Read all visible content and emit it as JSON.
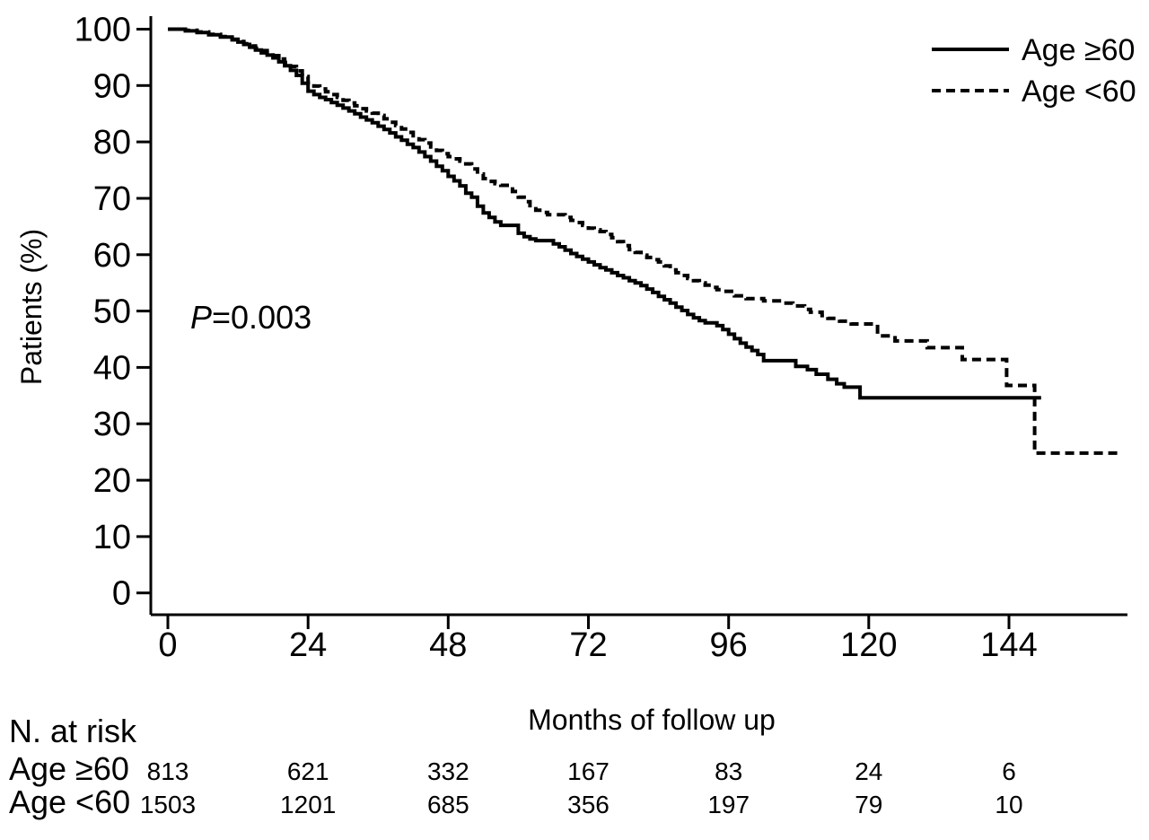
{
  "figure": {
    "background": "#ffffff",
    "ink_color": "#000000"
  },
  "chart_data": {
    "type": "line",
    "subtype": "kaplan-meier-step",
    "title": "",
    "xlabel": "Months of follow up",
    "ylabel": "Patients (%)",
    "xlim": [
      0,
      164
    ],
    "ylim": [
      0,
      100
    ],
    "grid": false,
    "legend_position": "top-right",
    "x_ticks": [
      0,
      24,
      48,
      72,
      96,
      120,
      144
    ],
    "y_ticks": [
      0,
      10,
      20,
      30,
      40,
      50,
      60,
      70,
      80,
      90,
      100
    ],
    "annotation": {
      "italic": "P",
      "text": "=0.003"
    },
    "series": [
      {
        "name": "Age ≥60",
        "line_style": "solid",
        "points": [
          [
            0,
            100
          ],
          [
            3,
            99.7
          ],
          [
            5,
            99.4
          ],
          [
            7,
            99.0
          ],
          [
            9,
            98.6
          ],
          [
            11,
            98.1
          ],
          [
            12,
            97.7
          ],
          [
            13,
            97.3
          ],
          [
            14,
            96.8
          ],
          [
            15,
            96.3
          ],
          [
            16,
            95.8
          ],
          [
            17,
            95.4
          ],
          [
            18,
            94.9
          ],
          [
            19,
            94.2
          ],
          [
            20,
            93.5
          ],
          [
            21,
            92.7
          ],
          [
            22,
            91.8
          ],
          [
            23,
            90.4
          ],
          [
            24,
            89.0
          ],
          [
            25,
            88.4
          ],
          [
            26,
            87.9
          ],
          [
            27,
            87.5
          ],
          [
            28,
            87.0
          ],
          [
            29,
            86.5
          ],
          [
            30,
            86.0
          ],
          [
            31,
            85.5
          ],
          [
            32,
            85.0
          ],
          [
            33,
            84.4
          ],
          [
            34,
            83.9
          ],
          [
            35,
            83.4
          ],
          [
            36,
            82.8
          ],
          [
            37,
            82.2
          ],
          [
            38,
            81.6
          ],
          [
            39,
            80.9
          ],
          [
            40,
            80.3
          ],
          [
            41,
            79.6
          ],
          [
            42,
            79.0
          ],
          [
            43,
            78.2
          ],
          [
            44,
            77.4
          ],
          [
            45,
            76.6
          ],
          [
            46,
            75.7
          ],
          [
            47,
            74.9
          ],
          [
            48,
            73.9
          ],
          [
            49,
            73.1
          ],
          [
            50,
            72.2
          ],
          [
            51,
            70.9
          ],
          [
            52,
            70.2
          ],
          [
            53,
            68.6
          ],
          [
            54,
            67.4
          ],
          [
            55,
            66.6
          ],
          [
            56,
            65.8
          ],
          [
            57,
            65.2
          ],
          [
            60,
            63.8
          ],
          [
            61,
            63.2
          ],
          [
            62,
            62.8
          ],
          [
            63,
            62.5
          ],
          [
            66,
            61.9
          ],
          [
            67,
            61.4
          ],
          [
            68,
            60.8
          ],
          [
            69,
            60.2
          ],
          [
            70,
            59.7
          ],
          [
            71,
            59.2
          ],
          [
            72,
            58.7
          ],
          [
            73,
            58.2
          ],
          [
            74,
            57.7
          ],
          [
            75,
            57.3
          ],
          [
            76,
            56.8
          ],
          [
            77,
            56.3
          ],
          [
            78,
            55.9
          ],
          [
            79,
            55.4
          ],
          [
            80,
            55.0
          ],
          [
            81,
            54.5
          ],
          [
            82,
            53.9
          ],
          [
            83,
            53.3
          ],
          [
            84,
            52.6
          ],
          [
            85,
            52.0
          ],
          [
            86,
            51.4
          ],
          [
            87,
            50.7
          ],
          [
            88,
            50.1
          ],
          [
            89,
            49.4
          ],
          [
            90,
            48.8
          ],
          [
            91,
            48.3
          ],
          [
            92,
            47.9
          ],
          [
            94,
            47.4
          ],
          [
            95,
            46.7
          ],
          [
            96,
            45.9
          ],
          [
            97,
            45.1
          ],
          [
            98,
            44.3
          ],
          [
            99,
            43.6
          ],
          [
            100,
            43.0
          ],
          [
            101,
            42.3
          ],
          [
            102,
            41.2
          ],
          [
            107.5,
            40.2
          ],
          [
            109.5,
            39.6
          ],
          [
            111,
            38.8
          ],
          [
            113,
            37.9
          ],
          [
            114.5,
            37.1
          ],
          [
            115.8,
            36.5
          ],
          [
            118.5,
            34.6
          ],
          [
            149.5,
            34.6
          ]
        ]
      },
      {
        "name": "Age <60",
        "line_style": "dashed",
        "points": [
          [
            0,
            100
          ],
          [
            3,
            99.8
          ],
          [
            5,
            99.5
          ],
          [
            7,
            99.1
          ],
          [
            9,
            98.7
          ],
          [
            11,
            98.2
          ],
          [
            12,
            97.8
          ],
          [
            13,
            97.4
          ],
          [
            14,
            97.0
          ],
          [
            15,
            96.6
          ],
          [
            16,
            96.2
          ],
          [
            17,
            95.8
          ],
          [
            18,
            95.3
          ],
          [
            19,
            94.7
          ],
          [
            20,
            94.1
          ],
          [
            21,
            93.4
          ],
          [
            22,
            92.6
          ],
          [
            23,
            91.6
          ],
          [
            24,
            90.5
          ],
          [
            25,
            89.9
          ],
          [
            26,
            89.4
          ],
          [
            27,
            88.9
          ],
          [
            28,
            88.4
          ],
          [
            29,
            87.9
          ],
          [
            30,
            87.4
          ],
          [
            31,
            86.9
          ],
          [
            32,
            86.4
          ],
          [
            33,
            85.9
          ],
          [
            34,
            85.5
          ],
          [
            35,
            85.1
          ],
          [
            36,
            84.7
          ],
          [
            37,
            84.1
          ],
          [
            38,
            83.5
          ],
          [
            39,
            82.9
          ],
          [
            40,
            82.3
          ],
          [
            41,
            81.7
          ],
          [
            42,
            81.1
          ],
          [
            43,
            80.4
          ],
          [
            44,
            79.8
          ],
          [
            45,
            79.1
          ],
          [
            46,
            78.5
          ],
          [
            47,
            77.9
          ],
          [
            48,
            77.4
          ],
          [
            49,
            77.0
          ],
          [
            50,
            76.6
          ],
          [
            51,
            76.1
          ],
          [
            52,
            75.2
          ],
          [
            53,
            74.3
          ],
          [
            54,
            73.5
          ],
          [
            55,
            73.0
          ],
          [
            56,
            72.6
          ],
          [
            57,
            72.3
          ],
          [
            59,
            71.2
          ],
          [
            60,
            70.2
          ],
          [
            61,
            69.4
          ],
          [
            62,
            68.7
          ],
          [
            63,
            67.9
          ],
          [
            64,
            67.5
          ],
          [
            65,
            67.1
          ],
          [
            68,
            66.6
          ],
          [
            69,
            66.1
          ],
          [
            70,
            65.7
          ],
          [
            71,
            65.2
          ],
          [
            72,
            64.7
          ],
          [
            73,
            64.4
          ],
          [
            74,
            64.1
          ],
          [
            75,
            63.6
          ],
          [
            76,
            63.0
          ],
          [
            77,
            62.3
          ],
          [
            78,
            61.6
          ],
          [
            79,
            60.9
          ],
          [
            80,
            60.4
          ],
          [
            81,
            59.9
          ],
          [
            82,
            59.5
          ],
          [
            83,
            59.1
          ],
          [
            84,
            58.7
          ],
          [
            85,
            58.0
          ],
          [
            86,
            57.3
          ],
          [
            87,
            56.8
          ],
          [
            88,
            56.3
          ],
          [
            89,
            55.8
          ],
          [
            90,
            55.4
          ],
          [
            91,
            55.0
          ],
          [
            92,
            54.6
          ],
          [
            93,
            54.2
          ],
          [
            94,
            53.8
          ],
          [
            95,
            53.5
          ],
          [
            97,
            52.7
          ],
          [
            99,
            52.2
          ],
          [
            102,
            51.8
          ],
          [
            105,
            51.4
          ],
          [
            107,
            50.9
          ],
          [
            109,
            50.3
          ],
          [
            110,
            49.8
          ],
          [
            112,
            49.2
          ],
          [
            113,
            48.7
          ],
          [
            115,
            48.2
          ],
          [
            117,
            47.7
          ],
          [
            121.5,
            45.6
          ],
          [
            124.5,
            44.7
          ],
          [
            130,
            43.5
          ],
          [
            136,
            41.4
          ],
          [
            143.6,
            36.8
          ],
          [
            148.4,
            24.8
          ],
          [
            163,
            24.8
          ]
        ]
      }
    ]
  },
  "legend": {
    "entries": [
      {
        "label": "Age ≥60",
        "style": "solid"
      },
      {
        "label": "Age <60",
        "style": "dashed"
      }
    ]
  },
  "risk_table": {
    "title": "N. at risk",
    "columns_months": [
      0,
      24,
      48,
      72,
      96,
      120,
      144
    ],
    "rows": [
      {
        "label": "Age ≥60",
        "values": [
          813,
          621,
          332,
          167,
          83,
          24,
          6
        ]
      },
      {
        "label": "Age <60",
        "values": [
          1503,
          1201,
          685,
          356,
          197,
          79,
          10
        ]
      }
    ]
  }
}
